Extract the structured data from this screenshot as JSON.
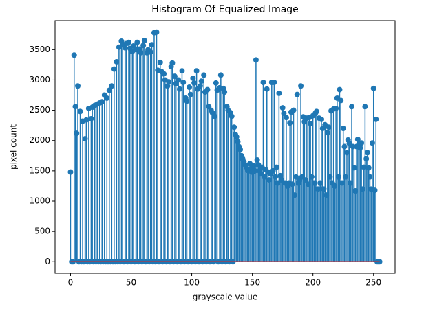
{
  "chart_data": {
    "type": "stem",
    "title": "Histogram Of Equalized Image",
    "x_label": "grayscale value",
    "y_label": "pixel count",
    "color": "#1f77b4",
    "baseline_color": "#d62728",
    "x": [
      0,
      1,
      2,
      3,
      4,
      5,
      6,
      7,
      8,
      9,
      10,
      11,
      12,
      13,
      14,
      15,
      16,
      17,
      18,
      19,
      20,
      21,
      22,
      23,
      24,
      25,
      26,
      27,
      28,
      29,
      30,
      31,
      32,
      33,
      34,
      35,
      36,
      37,
      38,
      39,
      40,
      41,
      42,
      43,
      44,
      45,
      46,
      47,
      48,
      49,
      50,
      51,
      52,
      53,
      54,
      55,
      56,
      57,
      58,
      59,
      60,
      61,
      62,
      63,
      64,
      65,
      66,
      67,
      68,
      69,
      70,
      71,
      72,
      73,
      74,
      75,
      76,
      77,
      78,
      79,
      80,
      81,
      82,
      83,
      84,
      85,
      86,
      87,
      88,
      89,
      90,
      91,
      92,
      93,
      94,
      95,
      96,
      97,
      98,
      99,
      100,
      101,
      102,
      103,
      104,
      105,
      106,
      107,
      108,
      109,
      110,
      111,
      112,
      113,
      114,
      115,
      116,
      117,
      118,
      119,
      120,
      121,
      122,
      123,
      124,
      125,
      126,
      127,
      128,
      129,
      130,
      131,
      132,
      133,
      134,
      135,
      136,
      137,
      138,
      139,
      140,
      141,
      142,
      143,
      144,
      145,
      146,
      147,
      148,
      149,
      150,
      151,
      152,
      153,
      154,
      155,
      156,
      157,
      158,
      159,
      160,
      161,
      162,
      163,
      164,
      165,
      166,
      167,
      168,
      169,
      170,
      171,
      172,
      173,
      174,
      175,
      176,
      177,
      178,
      179,
      180,
      181,
      182,
      183,
      184,
      185,
      186,
      187,
      188,
      189,
      190,
      191,
      192,
      193,
      194,
      195,
      196,
      197,
      198,
      199,
      200,
      201,
      202,
      203,
      204,
      205,
      206,
      207,
      208,
      209,
      210,
      211,
      212,
      213,
      214,
      215,
      216,
      217,
      218,
      219,
      220,
      221,
      222,
      223,
      224,
      225,
      226,
      227,
      228,
      229,
      230,
      231,
      232,
      233,
      234,
      235,
      236,
      237,
      238,
      239,
      240,
      241,
      242,
      243,
      244,
      245,
      246,
      247,
      248,
      249,
      250,
      251,
      252,
      253,
      254,
      255
    ],
    "values": [
      1480,
      0,
      0,
      3410,
      2560,
      2120,
      2900,
      0,
      2480,
      0,
      2320,
      0,
      2030,
      2340,
      0,
      2530,
      0,
      2360,
      2550,
      0,
      2580,
      0,
      2600,
      0,
      2620,
      0,
      2640,
      0,
      2750,
      0,
      2700,
      0,
      2830,
      0,
      2900,
      0,
      3180,
      0,
      3300,
      0,
      3540,
      0,
      3640,
      3580,
      0,
      3530,
      3600,
      0,
      3620,
      3520,
      0,
      3470,
      3560,
      0,
      3500,
      3620,
      0,
      3510,
      3450,
      0,
      3570,
      3650,
      0,
      3450,
      3500,
      0,
      3460,
      3580,
      0,
      3780,
      0,
      3790,
      3160,
      0,
      3290,
      3140,
      0,
      3100,
      3000,
      0,
      2900,
      2970,
      0,
      3220,
      3280,
      0,
      3060,
      2940,
      0,
      3000,
      2850,
      0,
      3150,
      2960,
      0,
      2700,
      2650,
      0,
      2880,
      2760,
      0,
      3030,
      2950,
      0,
      3150,
      2850,
      0,
      2900,
      2980,
      0,
      3080,
      2800,
      0,
      2840,
      2560,
      0,
      2500,
      2460,
      0,
      2400,
      2950,
      2830,
      0,
      2870,
      3080,
      0,
      2860,
      2800,
      0,
      2560,
      2500,
      0,
      2460,
      2400,
      0,
      2220,
      2100,
      2060,
      1980,
      1900,
      1850,
      1750,
      1700,
      1650,
      1600,
      1560,
      1520,
      1500,
      1620,
      1540,
      1480,
      1580,
      1500,
      3330,
      1680,
      1600,
      1500,
      1450,
      1560,
      2960,
      1400,
      1520,
      2850,
      1480,
      1350,
      1450,
      2960,
      1500,
      2960,
      1400,
      1560,
      1300,
      2780,
      1420,
      1350,
      2540,
      2450,
      1300,
      2380,
      1250,
      1300,
      2290,
      2470,
      1280,
      2500,
      1100,
      1400,
      2760,
      1300,
      1350,
      2900,
      1400,
      2390,
      2310,
      1350,
      2370,
      1280,
      2380,
      2280,
      1400,
      2410,
      1300,
      2450,
      2480,
      1200,
      2370,
      1300,
      2350,
      2200,
      1200,
      2260,
      1100,
      2130,
      2220,
      1400,
      2490,
      1300,
      2520,
      1250,
      2530,
      2700,
      1400,
      2840,
      2660,
      1300,
      2200,
      1900,
      1400,
      1800,
      2010,
      1950,
      1300,
      2560,
      1900,
      1550,
      1170,
      1900,
      2020,
      1950,
      1880,
      1960,
      1200,
      1560,
      2560,
      1700,
      1800,
      1550,
      1400,
      1200,
      1960,
      2860,
      1180,
      2350,
      0,
      0,
      0
    ],
    "xlim": [
      -12.75,
      267.75
    ],
    "xticks": [
      0,
      50,
      100,
      150,
      200,
      250
    ],
    "ylim": [
      -189.5,
      3979.5
    ],
    "yticks": [
      0,
      500,
      1000,
      1500,
      2000,
      2500,
      3000,
      3500
    ]
  }
}
